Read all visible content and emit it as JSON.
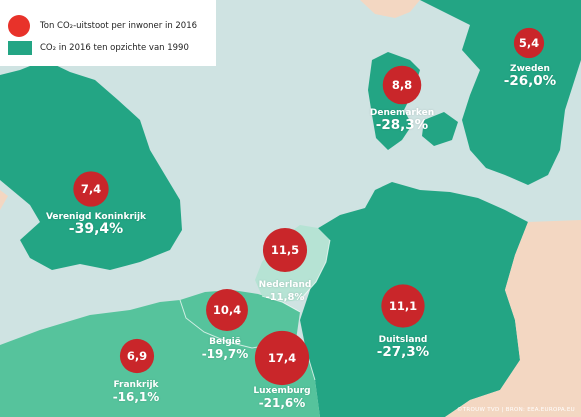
{
  "legend": {
    "bubble_label": "Ton CO₂-uitstoot per inwoner in 2016",
    "area_label": "CO₂ in 2016 ten opzichte van 1990",
    "bubble_color": "#e8322a",
    "area_color": "#23a584"
  },
  "countries": [
    {
      "id": "zweden",
      "name": "Zweden",
      "per_capita": "5,4",
      "change": "-26,0%"
    },
    {
      "id": "denemarken",
      "name": "Denemarken",
      "per_capita": "8,8",
      "change": "-28,3%"
    },
    {
      "id": "vk",
      "name": "Verenigd Koninkrijk",
      "per_capita": "7,4",
      "change": "-39,4%"
    },
    {
      "id": "nederland",
      "name": "Nederland",
      "per_capita": "11,5",
      "change": "-11,8%"
    },
    {
      "id": "belgie",
      "name": "België",
      "per_capita": "10,4",
      "change": "-19,7%"
    },
    {
      "id": "duitsland",
      "name": "Duitsland",
      "per_capita": "11,1",
      "change": "-27,3%"
    },
    {
      "id": "luxemburg",
      "name": "Luxemburg",
      "per_capita": "17,4",
      "change": "-21,6%"
    },
    {
      "id": "frankrijk",
      "name": "Frankrijk",
      "per_capita": "6,9",
      "change": "-16,1%"
    }
  ],
  "colors": {
    "sea": "#cfe3e2",
    "land_main": "#23a584",
    "land_light": "#56c39c",
    "land_pale": "#b6e3d4",
    "land_other": "#f3d7c2"
  },
  "credit": "©TROUW TVD | BRON: EEA.EUROPA.EU"
}
